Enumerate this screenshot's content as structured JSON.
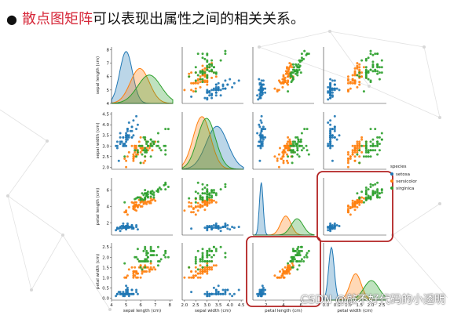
{
  "headline": {
    "bullet": "●",
    "highlight": "散点图矩阵",
    "rest": "可以表现出属性之间的相关关系。"
  },
  "watermark": "CSDN @敲不好代码的小透明",
  "chart_data": {
    "type": "scatter",
    "variables": [
      "sepal length (cm)",
      "sepal width (cm)",
      "petal length (cm)",
      "petal width (cm)"
    ],
    "ranges": [
      [
        4,
        8.2
      ],
      [
        1.9,
        4.6
      ],
      [
        0.5,
        7.5
      ],
      [
        -0.1,
        2.7
      ]
    ],
    "tick_labels": [
      [
        "4",
        "5",
        "6",
        "7",
        "8"
      ],
      [
        "2.0",
        "2.5",
        "3.0",
        "3.5",
        "4.0",
        "4.5"
      ],
      [
        "2",
        "4",
        "6"
      ],
      [
        "0.0",
        "0.5",
        "1.0",
        "1.5",
        "2.0",
        "2.5"
      ]
    ],
    "diagonal": "kde",
    "legend": {
      "title": "species",
      "placement": "right",
      "entries": [
        "setosa",
        "versicolor",
        "virginica"
      ]
    },
    "highlighted_panels": [
      [
        2,
        3
      ],
      [
        3,
        2
      ]
    ],
    "colors": {
      "setosa": "#1f77b4",
      "versicolor": "#ff7f0e",
      "virginica": "#2ca02c",
      "highlight": "#b22222"
    },
    "series": [
      {
        "name": "setosa",
        "stats": {
          "means": [
            5.0,
            3.43,
            1.46,
            0.25
          ],
          "sds": [
            0.35,
            0.38,
            0.17,
            0.1
          ],
          "points": [
            [
              5.1,
              3.5,
              1.4,
              0.2
            ],
            [
              4.9,
              3.0,
              1.4,
              0.2
            ],
            [
              4.7,
              3.2,
              1.3,
              0.2
            ],
            [
              4.6,
              3.1,
              1.5,
              0.2
            ],
            [
              5.0,
              3.6,
              1.4,
              0.2
            ],
            [
              5.4,
              3.9,
              1.7,
              0.4
            ],
            [
              4.6,
              3.4,
              1.4,
              0.3
            ],
            [
              5.0,
              3.4,
              1.5,
              0.2
            ],
            [
              4.4,
              2.9,
              1.4,
              0.2
            ],
            [
              4.9,
              3.1,
              1.5,
              0.1
            ],
            [
              5.4,
              3.7,
              1.5,
              0.2
            ],
            [
              4.8,
              3.4,
              1.6,
              0.2
            ],
            [
              4.8,
              3.0,
              1.4,
              0.1
            ],
            [
              4.3,
              3.0,
              1.1,
              0.1
            ],
            [
              5.8,
              4.0,
              1.2,
              0.2
            ],
            [
              5.7,
              4.4,
              1.5,
              0.4
            ],
            [
              5.4,
              3.9,
              1.3,
              0.4
            ],
            [
              5.1,
              3.5,
              1.4,
              0.3
            ],
            [
              5.7,
              3.8,
              1.7,
              0.3
            ],
            [
              5.1,
              3.8,
              1.5,
              0.3
            ],
            [
              5.4,
              3.4,
              1.7,
              0.2
            ],
            [
              5.1,
              3.7,
              1.5,
              0.4
            ],
            [
              4.6,
              3.6,
              1.0,
              0.2
            ],
            [
              5.1,
              3.3,
              1.7,
              0.5
            ],
            [
              4.8,
              3.4,
              1.9,
              0.2
            ],
            [
              5.0,
              3.0,
              1.6,
              0.2
            ],
            [
              5.0,
              3.4,
              1.6,
              0.4
            ],
            [
              5.2,
              3.5,
              1.5,
              0.2
            ],
            [
              5.2,
              3.4,
              1.4,
              0.2
            ],
            [
              4.7,
              3.2,
              1.6,
              0.2
            ],
            [
              4.8,
              3.1,
              1.6,
              0.2
            ],
            [
              5.4,
              3.4,
              1.5,
              0.4
            ],
            [
              5.2,
              4.1,
              1.5,
              0.1
            ],
            [
              5.5,
              4.2,
              1.4,
              0.2
            ],
            [
              4.9,
              3.1,
              1.5,
              0.2
            ],
            [
              5.0,
              3.2,
              1.2,
              0.2
            ],
            [
              5.5,
              3.5,
              1.3,
              0.2
            ],
            [
              4.4,
              3.0,
              1.3,
              0.2
            ],
            [
              5.1,
              3.4,
              1.5,
              0.2
            ],
            [
              5.0,
              3.5,
              1.3,
              0.3
            ],
            [
              4.5,
              2.3,
              1.3,
              0.3
            ],
            [
              4.4,
              3.2,
              1.3,
              0.2
            ],
            [
              5.0,
              3.5,
              1.6,
              0.6
            ],
            [
              5.1,
              3.8,
              1.9,
              0.4
            ],
            [
              4.8,
              3.0,
              1.4,
              0.3
            ],
            [
              5.1,
              3.8,
              1.6,
              0.2
            ],
            [
              4.6,
              3.2,
              1.4,
              0.2
            ],
            [
              5.3,
              3.7,
              1.5,
              0.2
            ],
            [
              5.0,
              3.3,
              1.4,
              0.2
            ]
          ]
        }
      },
      {
        "name": "versicolor",
        "stats": {
          "means": [
            5.94,
            2.77,
            4.26,
            1.33
          ],
          "sds": [
            0.52,
            0.31,
            0.47,
            0.2
          ],
          "points": [
            [
              7.0,
              3.2,
              4.7,
              1.4
            ],
            [
              6.4,
              3.2,
              4.5,
              1.5
            ],
            [
              6.9,
              3.1,
              4.9,
              1.5
            ],
            [
              5.5,
              2.3,
              4.0,
              1.3
            ],
            [
              6.5,
              2.8,
              4.6,
              1.5
            ],
            [
              5.7,
              2.8,
              4.5,
              1.3
            ],
            [
              6.3,
              3.3,
              4.7,
              1.6
            ],
            [
              4.9,
              2.4,
              3.3,
              1.0
            ],
            [
              6.6,
              2.9,
              4.6,
              1.3
            ],
            [
              5.2,
              2.7,
              3.9,
              1.4
            ],
            [
              5.0,
              2.0,
              3.5,
              1.0
            ],
            [
              5.9,
              3.0,
              4.2,
              1.5
            ],
            [
              6.0,
              2.2,
              4.0,
              1.0
            ],
            [
              6.1,
              2.9,
              4.7,
              1.4
            ],
            [
              5.6,
              2.9,
              3.6,
              1.3
            ],
            [
              6.7,
              3.1,
              4.4,
              1.4
            ],
            [
              5.6,
              3.0,
              4.5,
              1.5
            ],
            [
              5.8,
              2.7,
              4.1,
              1.0
            ],
            [
              6.2,
              2.2,
              4.5,
              1.5
            ],
            [
              5.6,
              2.5,
              3.9,
              1.1
            ],
            [
              5.9,
              3.2,
              4.8,
              1.8
            ],
            [
              6.1,
              2.8,
              4.0,
              1.3
            ],
            [
              6.3,
              2.5,
              4.9,
              1.5
            ],
            [
              6.1,
              2.8,
              4.7,
              1.2
            ],
            [
              6.4,
              2.9,
              4.3,
              1.3
            ],
            [
              6.6,
              3.0,
              4.4,
              1.4
            ],
            [
              6.8,
              2.8,
              4.8,
              1.4
            ],
            [
              6.7,
              3.0,
              5.0,
              1.7
            ],
            [
              6.0,
              2.9,
              4.5,
              1.5
            ],
            [
              5.7,
              2.6,
              3.5,
              1.0
            ],
            [
              5.5,
              2.4,
              3.8,
              1.1
            ],
            [
              5.5,
              2.4,
              3.7,
              1.0
            ],
            [
              5.8,
              2.7,
              3.9,
              1.2
            ],
            [
              6.0,
              2.7,
              5.1,
              1.6
            ],
            [
              5.4,
              3.0,
              4.5,
              1.5
            ],
            [
              6.0,
              3.4,
              4.5,
              1.6
            ],
            [
              6.7,
              3.1,
              4.7,
              1.5
            ],
            [
              6.3,
              2.3,
              4.4,
              1.3
            ],
            [
              5.6,
              3.0,
              4.1,
              1.3
            ],
            [
              5.5,
              2.5,
              4.0,
              1.3
            ],
            [
              5.5,
              2.6,
              4.4,
              1.2
            ],
            [
              6.1,
              3.0,
              4.6,
              1.4
            ],
            [
              5.8,
              2.6,
              4.0,
              1.2
            ],
            [
              5.0,
              2.3,
              3.3,
              1.0
            ],
            [
              5.6,
              2.7,
              4.2,
              1.3
            ],
            [
              5.7,
              3.0,
              4.2,
              1.2
            ],
            [
              5.7,
              2.9,
              4.2,
              1.3
            ],
            [
              6.2,
              2.9,
              4.3,
              1.3
            ],
            [
              5.1,
              2.5,
              3.0,
              1.1
            ],
            [
              5.7,
              2.8,
              4.1,
              1.3
            ]
          ]
        }
      },
      {
        "name": "virginica",
        "stats": {
          "means": [
            6.59,
            2.97,
            5.55,
            2.03
          ],
          "sds": [
            0.64,
            0.32,
            0.55,
            0.27
          ],
          "points": [
            [
              6.3,
              3.3,
              6.0,
              2.5
            ],
            [
              5.8,
              2.7,
              5.1,
              1.9
            ],
            [
              7.1,
              3.0,
              5.9,
              2.1
            ],
            [
              6.3,
              2.9,
              5.6,
              1.8
            ],
            [
              6.5,
              3.0,
              5.8,
              2.2
            ],
            [
              7.6,
              3.0,
              6.6,
              2.1
            ],
            [
              4.9,
              2.5,
              4.5,
              1.7
            ],
            [
              7.3,
              2.9,
              6.3,
              1.8
            ],
            [
              6.7,
              2.5,
              5.8,
              1.8
            ],
            [
              7.2,
              3.6,
              6.1,
              2.5
            ],
            [
              6.5,
              3.2,
              5.1,
              2.0
            ],
            [
              6.4,
              2.7,
              5.3,
              1.9
            ],
            [
              6.8,
              3.0,
              5.5,
              2.1
            ],
            [
              5.7,
              2.5,
              5.0,
              2.0
            ],
            [
              5.8,
              2.8,
              5.1,
              2.4
            ],
            [
              6.4,
              3.2,
              5.3,
              2.3
            ],
            [
              6.5,
              3.0,
              5.5,
              1.8
            ],
            [
              7.7,
              3.8,
              6.7,
              2.2
            ],
            [
              7.7,
              2.6,
              6.9,
              2.3
            ],
            [
              6.0,
              2.2,
              5.0,
              1.5
            ],
            [
              6.9,
              3.2,
              5.7,
              2.3
            ],
            [
              5.6,
              2.8,
              4.9,
              2.0
            ],
            [
              7.7,
              2.8,
              6.7,
              2.0
            ],
            [
              6.3,
              2.7,
              4.9,
              1.8
            ],
            [
              6.7,
              3.3,
              5.7,
              2.1
            ],
            [
              7.2,
              3.2,
              6.0,
              1.8
            ],
            [
              6.2,
              2.8,
              4.8,
              1.8
            ],
            [
              6.1,
              3.0,
              4.9,
              1.8
            ],
            [
              6.4,
              2.8,
              5.6,
              2.1
            ],
            [
              7.2,
              3.0,
              5.8,
              1.6
            ],
            [
              7.4,
              2.8,
              6.1,
              1.9
            ],
            [
              7.9,
              3.8,
              6.4,
              2.0
            ],
            [
              6.4,
              2.8,
              5.6,
              2.2
            ],
            [
              6.3,
              2.8,
              5.1,
              1.5
            ],
            [
              6.1,
              2.6,
              5.6,
              1.4
            ],
            [
              7.7,
              3.0,
              6.1,
              2.3
            ],
            [
              6.3,
              3.4,
              5.6,
              2.4
            ],
            [
              6.4,
              3.1,
              5.5,
              1.8
            ],
            [
              6.0,
              3.0,
              4.8,
              1.8
            ],
            [
              6.9,
              3.1,
              5.4,
              2.1
            ],
            [
              6.7,
              3.1,
              5.6,
              2.4
            ],
            [
              6.9,
              3.1,
              5.1,
              2.3
            ],
            [
              6.8,
              3.2,
              5.9,
              2.3
            ],
            [
              6.7,
              3.3,
              5.7,
              2.5
            ],
            [
              6.7,
              3.0,
              5.2,
              2.3
            ],
            [
              6.3,
              2.5,
              5.0,
              1.9
            ],
            [
              6.5,
              3.0,
              5.2,
              2.0
            ],
            [
              6.2,
              3.4,
              5.4,
              2.3
            ],
            [
              5.9,
              3.0,
              5.1,
              1.8
            ]
          ]
        }
      }
    ]
  }
}
